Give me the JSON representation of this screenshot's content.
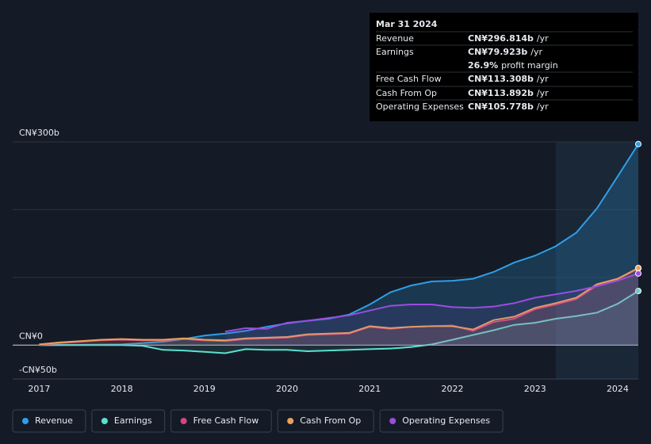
{
  "chart_data": {
    "type": "line",
    "x": [
      2017,
      2017.25,
      2017.5,
      2017.75,
      2018,
      2018.25,
      2018.5,
      2018.75,
      2019,
      2019.25,
      2019.5,
      2019.75,
      2020,
      2020.25,
      2020.5,
      2020.75,
      2021,
      2021.25,
      2021.5,
      2021.75,
      2022,
      2022.25,
      2022.5,
      2022.75,
      2023,
      2023.25,
      2023.5,
      2023.75,
      2024,
      2024.25
    ],
    "xlim": [
      2016.68,
      2024.25
    ],
    "xticks": [
      2017,
      2018,
      2019,
      2020,
      2021,
      2022,
      2023,
      2024
    ],
    "ylim": [
      -50,
      300
    ],
    "yticks": [
      {
        "value": 300,
        "label": "CN¥300b"
      },
      {
        "value": 0,
        "label": "CN¥0"
      },
      {
        "value": -50,
        "label": "-CN¥50b"
      }
    ],
    "ygrid": [
      0,
      100,
      200,
      300
    ],
    "series": [
      {
        "name": "Revenue",
        "color": "#2f9ee8",
        "values": [
          0,
          0.2,
          0.5,
          0.8,
          1,
          3,
          5,
          9,
          14,
          17,
          21,
          27,
          32,
          36,
          39,
          45,
          60,
          78,
          88,
          94,
          95,
          98,
          108,
          122,
          132,
          146,
          166,
          202,
          249,
          296.814
        ]
      },
      {
        "name": "Earnings",
        "color": "#5ce0d0",
        "values": [
          0,
          0,
          0,
          0,
          0,
          -1,
          -7,
          -8,
          -10,
          -12,
          -6,
          -7,
          -7,
          -9,
          -8,
          -7,
          -6,
          -5,
          -3,
          1,
          8,
          15,
          22,
          30,
          33,
          39,
          43,
          48,
          61,
          79.923
        ]
      },
      {
        "name": "Free Cash Flow",
        "color": "#d6457f",
        "values": [
          0,
          3,
          5,
          7,
          8,
          7,
          7,
          9,
          7,
          6,
          9,
          10,
          11,
          15,
          16,
          17,
          27,
          24,
          27,
          28,
          29,
          21,
          34,
          39,
          53,
          60,
          68,
          88,
          97,
          113.308
        ]
      },
      {
        "name": "Cash From Op",
        "color": "#e8a25d",
        "values": [
          1,
          4,
          6,
          8,
          9,
          8,
          8,
          10,
          8,
          7,
          10,
          11,
          12,
          16,
          17,
          18,
          28,
          25,
          27,
          28,
          28,
          23,
          37,
          42,
          55,
          62,
          70,
          90,
          98,
          113.892
        ]
      },
      {
        "name": "Operating Expenses",
        "color": "#9b4de0",
        "values": [
          null,
          null,
          null,
          null,
          null,
          null,
          null,
          null,
          null,
          20,
          25,
          24,
          33,
          36,
          40,
          44,
          51,
          58,
          60,
          60,
          56,
          55,
          57,
          62,
          70,
          75,
          80,
          87,
          95,
          105.778
        ]
      }
    ],
    "tooltip": {
      "date": "Mar 31 2024",
      "rows": [
        {
          "label": "Revenue",
          "value": "CN¥296.814b",
          "suffix": "/yr"
        },
        {
          "label": "Earnings",
          "value": "CN¥79.923b",
          "suffix": "/yr"
        },
        {
          "label": "",
          "value": "26.9%",
          "suffix": "profit margin"
        },
        {
          "label": "Free Cash Flow",
          "value": "CN¥113.308b",
          "suffix": "/yr"
        },
        {
          "label": "Cash From Op",
          "value": "CN¥113.892b",
          "suffix": "/yr"
        },
        {
          "label": "Operating Expenses",
          "value": "CN¥105.778b",
          "suffix": "/yr"
        }
      ]
    }
  }
}
